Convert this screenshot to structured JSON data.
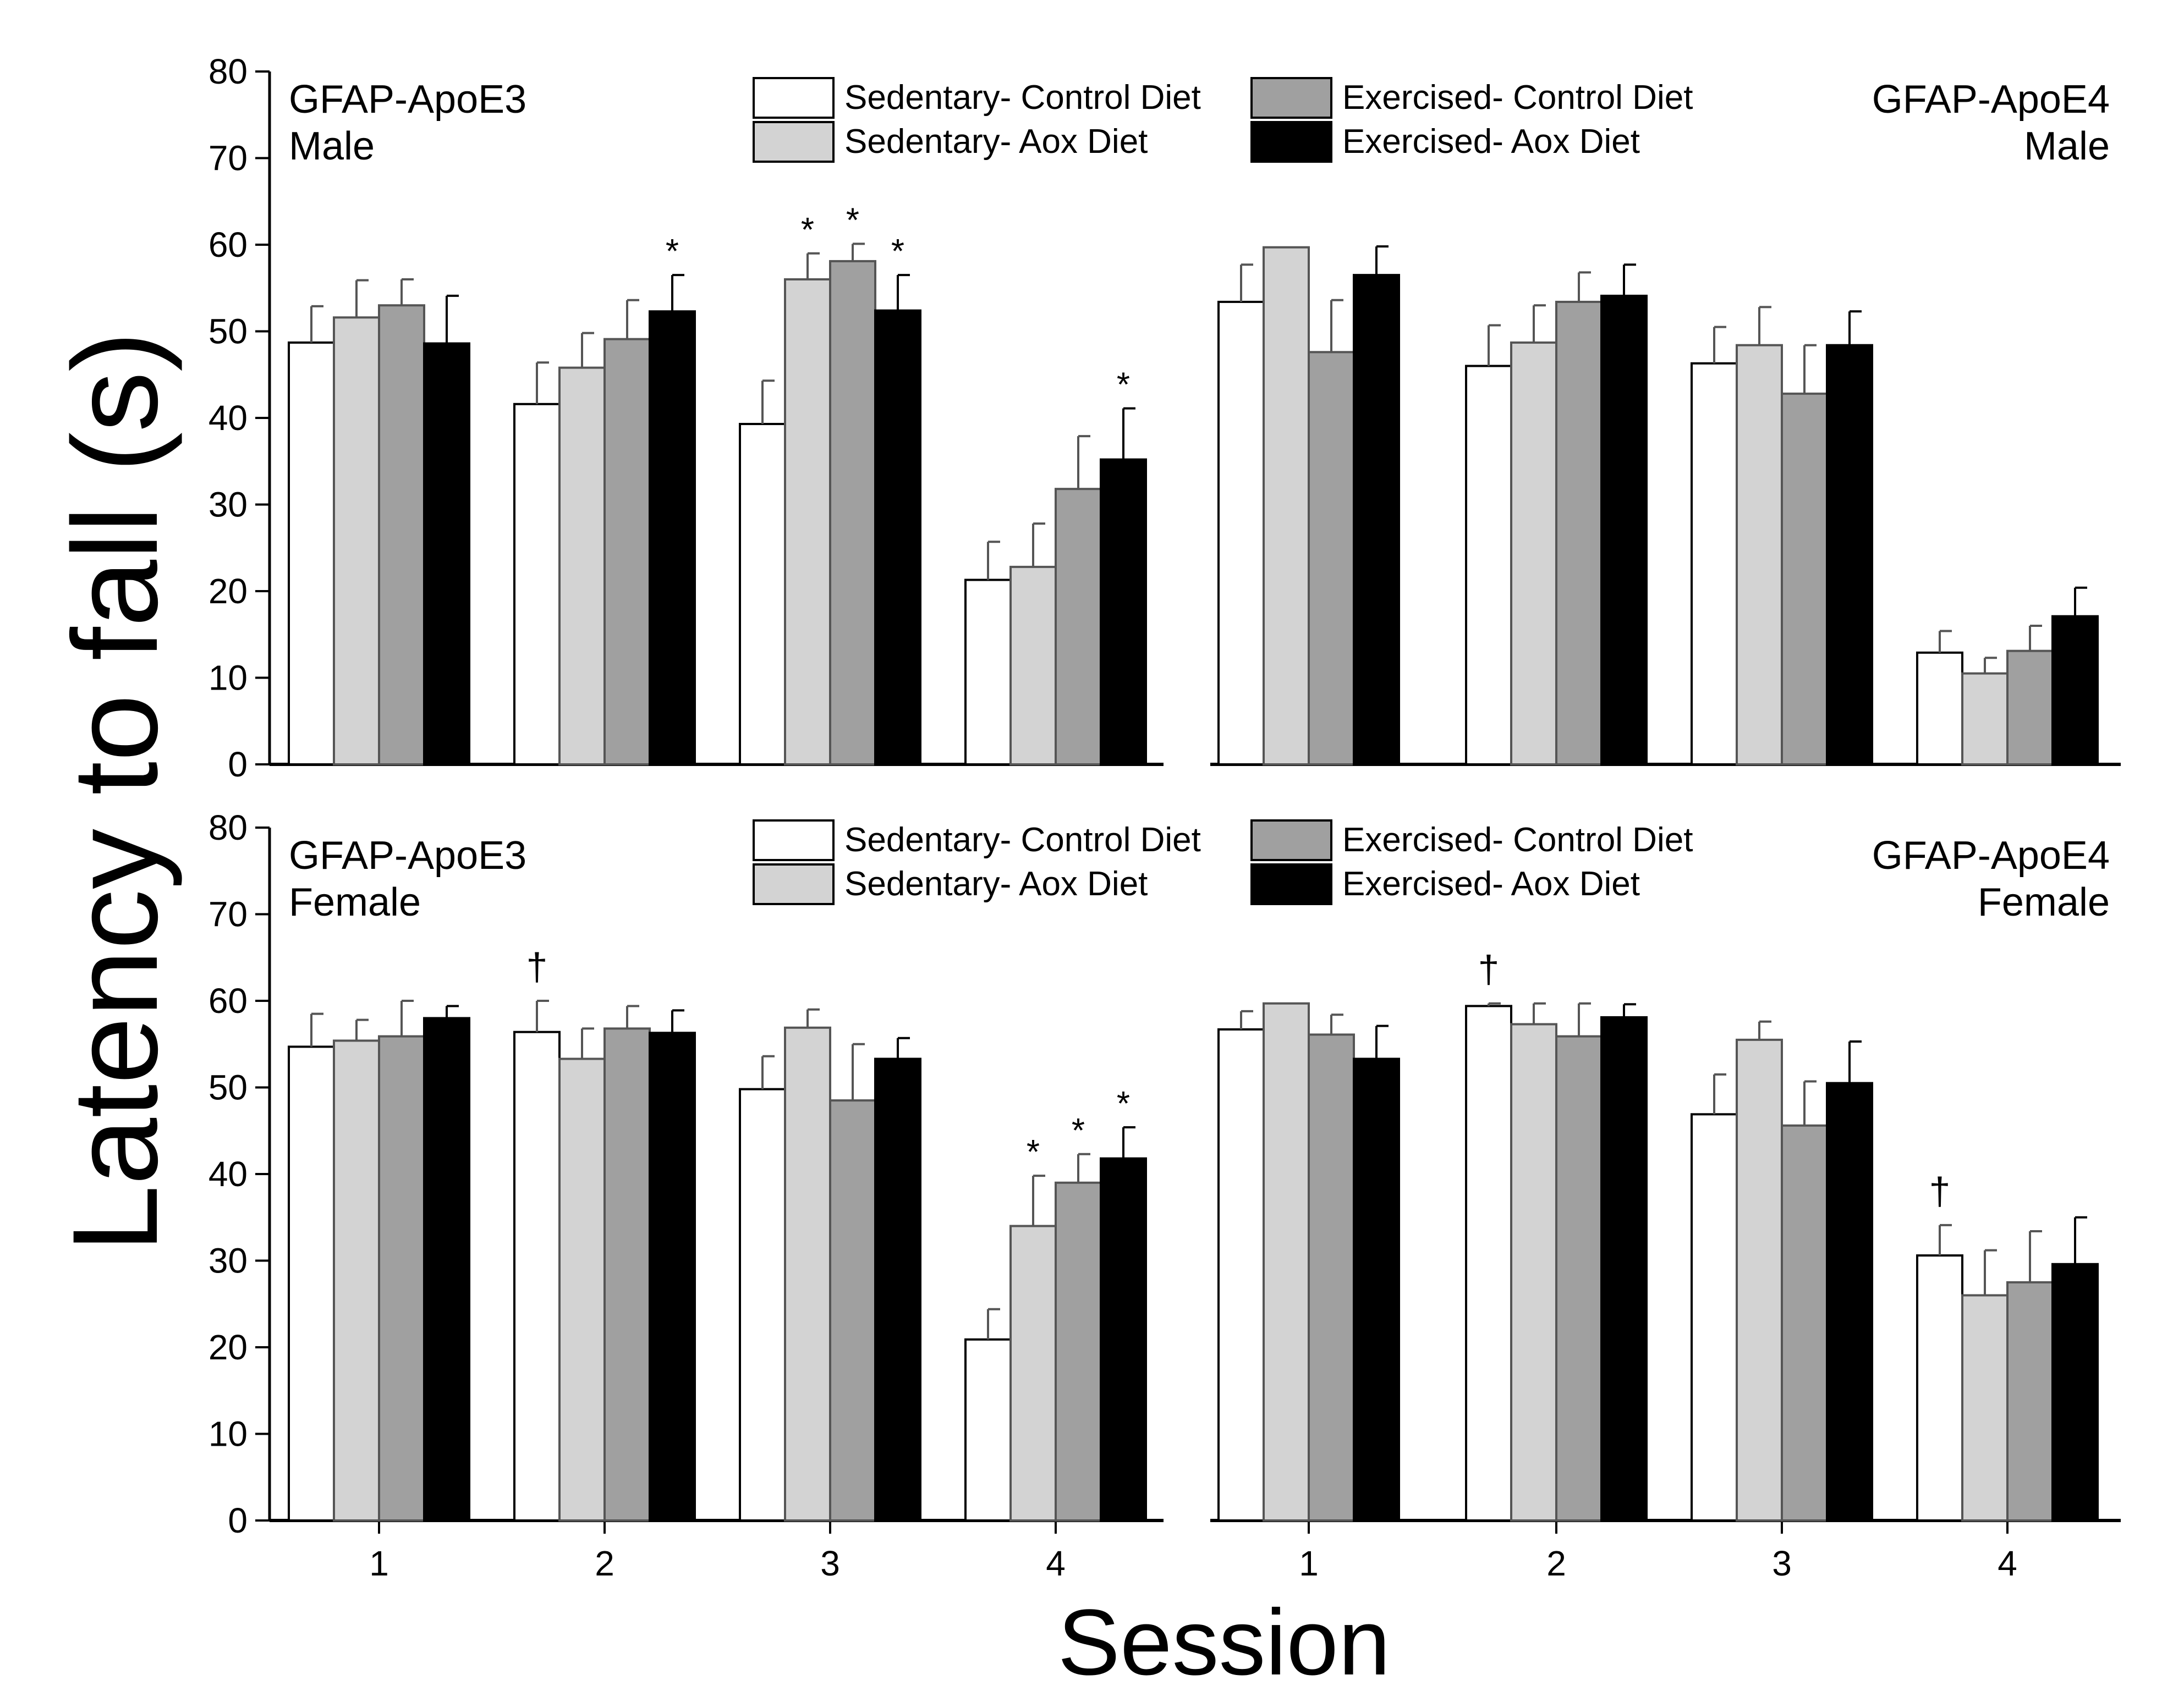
{
  "figure": {
    "ylabel": "Latency to fall (s)",
    "xlabel": "Session"
  },
  "legend": [
    {
      "label": "Sedentary- Control Diet",
      "color": "#ffffff"
    },
    {
      "label": "Sedentary- Aox Diet",
      "color": "#d3d3d3"
    },
    {
      "label": "Exercised- Control Diet",
      "color": "#a0a0a0"
    },
    {
      "label": "Exercised- Aox Diet",
      "color": "#000000"
    }
  ],
  "chart_data": [
    {
      "type": "bar",
      "title_line1": "GFAP-ApoE3",
      "title_line2": "Male",
      "categories": [
        "1",
        "2",
        "3",
        "4"
      ],
      "ylim": [
        0,
        80
      ],
      "yticks": [
        0,
        10,
        20,
        30,
        40,
        50,
        60,
        70,
        80
      ],
      "series": [
        {
          "name": "Sedentary- Control Diet",
          "values": [
            48.7,
            41.6,
            39.3,
            21.3
          ],
          "errors": [
            4.2,
            4.8,
            5.0,
            4.4
          ]
        },
        {
          "name": "Sedentary- Aox Diet",
          "values": [
            51.6,
            45.8,
            56.0,
            22.8
          ],
          "errors": [
            4.3,
            4.0,
            3.0,
            5.0
          ]
        },
        {
          "name": "Exercised- Control Diet",
          "values": [
            53.0,
            49.1,
            58.1,
            31.8
          ],
          "errors": [
            3.0,
            4.5,
            2.0,
            6.1
          ]
        },
        {
          "name": "Exercised- Aox Diet",
          "values": [
            48.6,
            52.3,
            52.4,
            35.2
          ],
          "errors": [
            5.5,
            4.2,
            4.1,
            5.9
          ]
        }
      ],
      "annotations": [
        {
          "category": "2",
          "series": 3,
          "symbol": "*"
        },
        {
          "category": "3",
          "series": 1,
          "symbol": "*"
        },
        {
          "category": "3",
          "series": 2,
          "symbol": "*"
        },
        {
          "category": "3",
          "series": 3,
          "symbol": "*"
        },
        {
          "category": "4",
          "series": 3,
          "symbol": "*"
        }
      ]
    },
    {
      "type": "bar",
      "title_line1": "GFAP-ApoE4",
      "title_line2": "Male",
      "categories": [
        "1",
        "2",
        "3",
        "4"
      ],
      "ylim": [
        0,
        80
      ],
      "series": [
        {
          "name": "Sedentary- Control Diet",
          "values": [
            53.4,
            46.0,
            46.3,
            12.9
          ],
          "errors": [
            4.3,
            4.7,
            4.2,
            2.5
          ]
        },
        {
          "name": "Sedentary- Aox Diet",
          "values": [
            59.7,
            48.7,
            48.4,
            10.5
          ],
          "errors": [
            0.0,
            4.3,
            4.4,
            1.8
          ]
        },
        {
          "name": "Exercised- Control Diet",
          "values": [
            47.6,
            53.4,
            42.8,
            13.1
          ],
          "errors": [
            6.0,
            3.4,
            5.6,
            2.9
          ]
        },
        {
          "name": "Exercised- Aox Diet",
          "values": [
            56.5,
            54.1,
            48.4,
            17.1
          ],
          "errors": [
            3.3,
            3.6,
            3.9,
            3.3
          ]
        }
      ],
      "annotations": []
    },
    {
      "type": "bar",
      "title_line1": "GFAP-ApoE3",
      "title_line2": "Female",
      "categories": [
        "1",
        "2",
        "3",
        "4"
      ],
      "ylim": [
        0,
        80
      ],
      "yticks": [
        0,
        10,
        20,
        30,
        40,
        50,
        60,
        70,
        80
      ],
      "xlabel": "",
      "series": [
        {
          "name": "Sedentary- Control Diet",
          "values": [
            54.7,
            56.4,
            49.8,
            20.9
          ],
          "errors": [
            3.8,
            3.6,
            3.8,
            3.5
          ]
        },
        {
          "name": "Sedentary- Aox Diet",
          "values": [
            55.4,
            53.3,
            56.9,
            34.0
          ],
          "errors": [
            2.4,
            3.5,
            2.1,
            5.8
          ]
        },
        {
          "name": "Exercised- Control Diet",
          "values": [
            55.9,
            56.8,
            48.5,
            39.0
          ],
          "errors": [
            4.1,
            2.6,
            6.5,
            3.3
          ]
        },
        {
          "name": "Exercised- Aox Diet",
          "values": [
            58.0,
            56.3,
            53.3,
            41.8
          ],
          "errors": [
            1.4,
            2.6,
            2.4,
            3.6
          ]
        }
      ],
      "annotations": [
        {
          "category": "2",
          "series": 0,
          "symbol": "†"
        },
        {
          "category": "4",
          "series": 1,
          "symbol": "*"
        },
        {
          "category": "4",
          "series": 2,
          "symbol": "*"
        },
        {
          "category": "4",
          "series": 3,
          "symbol": "*"
        }
      ]
    },
    {
      "type": "bar",
      "title_line1": "GFAP-ApoE4",
      "title_line2": "Female",
      "categories": [
        "1",
        "2",
        "3",
        "4"
      ],
      "ylim": [
        0,
        80
      ],
      "series": [
        {
          "name": "Sedentary- Control Diet",
          "values": [
            56.7,
            59.4,
            46.9,
            30.6
          ],
          "errors": [
            2.1,
            0.3,
            4.6,
            3.5
          ]
        },
        {
          "name": "Sedentary- Aox Diet",
          "values": [
            59.7,
            57.3,
            55.5,
            26.0
          ],
          "errors": [
            0.0,
            2.4,
            2.1,
            5.2
          ]
        },
        {
          "name": "Exercised- Control Diet",
          "values": [
            56.1,
            55.9,
            45.6,
            27.5
          ],
          "errors": [
            2.3,
            3.8,
            5.1,
            5.9
          ]
        },
        {
          "name": "Exercised- Aox Diet",
          "values": [
            53.3,
            58.1,
            50.5,
            29.6
          ],
          "errors": [
            3.8,
            1.5,
            4.8,
            5.4
          ]
        }
      ],
      "annotations": [
        {
          "category": "2",
          "series": 0,
          "symbol": "†"
        },
        {
          "category": "4",
          "series": 0,
          "symbol": "†"
        }
      ]
    }
  ]
}
